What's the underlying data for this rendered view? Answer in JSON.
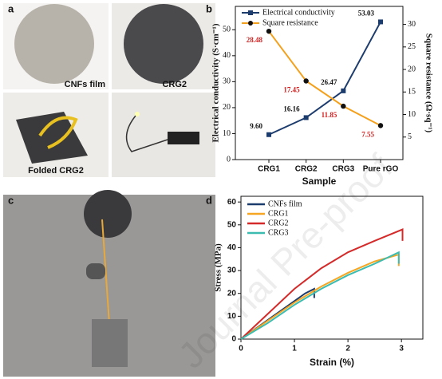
{
  "panels": [
    "a",
    "b",
    "c",
    "d"
  ],
  "photo_captions": [
    "CNFs film",
    "CRG2",
    "Folded CRG2"
  ],
  "watermark": "Journal Pre-proof",
  "chart_data": [
    {
      "type": "line",
      "x_label": "Sample",
      "y_label": "Electrical conductivity (S·cm⁻¹)",
      "y2_label": "Square resistance (Ω·sq⁻¹)",
      "categories": [
        "CRG1",
        "CRG2",
        "CRG3",
        "Pure rGO"
      ],
      "ylim": [
        0,
        59
      ],
      "yticks": [
        0,
        10,
        20,
        30,
        40,
        50
      ],
      "y2lim": [
        0,
        34
      ],
      "y2ticks": [
        5,
        10,
        15,
        20,
        25,
        30
      ],
      "legend": "top-left",
      "series": [
        {
          "name": "Electrical conductivity",
          "color": "#1d3c6e",
          "marker": "square",
          "label_color": "#111111",
          "values": [
            9.6,
            16.16,
            26.47,
            53.03
          ],
          "value_labels": [
            "9.60",
            "16.16",
            "26.47",
            "53.03"
          ]
        },
        {
          "name": "Square resistance",
          "color": "#f5a01a",
          "marker": "circle",
          "label_color": "#d42020",
          "axis": "y2",
          "values": [
            28.48,
            17.45,
            11.85,
            7.55
          ]
        }
      ]
    },
    {
      "type": "xyline",
      "x_label": "Strain (%)",
      "y_label": "Stress (MPa)",
      "xlim": [
        0,
        3.4
      ],
      "xticks": [
        0,
        1,
        2,
        3
      ],
      "ylim": [
        0,
        62.5
      ],
      "yticks": [
        0,
        10,
        20,
        30,
        40,
        50,
        60
      ],
      "legend": "top-left",
      "series": [
        {
          "name": "CNFs film",
          "color": "#1d3c6e",
          "x": [
            0,
            0.3,
            0.6,
            0.9,
            1.2,
            1.37,
            1.37
          ],
          "values": [
            0,
            5,
            10,
            15,
            20,
            22,
            18
          ]
        },
        {
          "name": "CRG1",
          "color": "#f5a623",
          "x": [
            0,
            0.5,
            1,
            1.5,
            2,
            2.5,
            2.95,
            2.95
          ],
          "values": [
            0,
            8,
            16,
            23,
            29,
            34,
            37,
            32
          ]
        },
        {
          "name": "CRG2",
          "color": "#d42a2a",
          "x": [
            0,
            0.5,
            1,
            1.5,
            2,
            2.5,
            3.02,
            3.02
          ],
          "values": [
            0,
            11,
            22,
            31,
            38,
            43,
            48,
            43
          ]
        },
        {
          "name": "CRG3",
          "color": "#3cbcb0",
          "x": [
            0,
            0.5,
            1,
            1.5,
            2,
            2.5,
            2.95,
            2.95
          ],
          "values": [
            0,
            7,
            15,
            22,
            28,
            33,
            38,
            33
          ]
        }
      ]
    }
  ]
}
